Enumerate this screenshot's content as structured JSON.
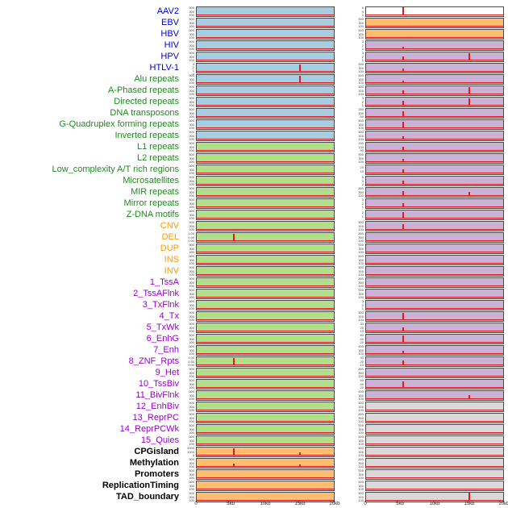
{
  "colors": {
    "blue": "#a6cee3",
    "green": "#b2df8a",
    "orange": "#fdbf6f",
    "purple": "#cab2d6",
    "gray": "#d9d9d9",
    "white": "#ffffff",
    "signal": "#e31a1c",
    "label_blue": "#0000cc",
    "label_green": "#1f8a1f",
    "label_orange": "#ff9900",
    "label_purple": "#9900cc",
    "label_black": "#000000"
  },
  "chart_data": {
    "type": "line",
    "x_axis": {
      "labels": [
        "0",
        "5kb",
        "10kb",
        "15kb",
        "20kb"
      ],
      "range_kb": [
        0,
        20
      ]
    },
    "default_yticks": [
      "500",
      "300",
      "100"
    ],
    "rows": [
      {
        "label": "AAV2",
        "label_color": "blue",
        "left": {
          "bg": "blue"
        },
        "right": {
          "bg": "white",
          "yticks": [
            "6",
            "4",
            "2"
          ],
          "spikes": [
            [
              0.27,
              0.95
            ]
          ]
        }
      },
      {
        "label": "EBV",
        "label_color": "blue",
        "left": {
          "bg": "blue"
        },
        "right": {
          "bg": "orange"
        }
      },
      {
        "label": "HBV",
        "label_color": "blue",
        "left": {
          "bg": "blue"
        },
        "right": {
          "bg": "orange"
        }
      },
      {
        "label": "HIV",
        "label_color": "blue",
        "left": {
          "bg": "blue"
        },
        "right": {
          "bg": "purple",
          "yticks": [
            "3",
            "2",
            "1"
          ],
          "spikes": [
            [
              0.27,
              0.3
            ]
          ]
        }
      },
      {
        "label": "HPV",
        "label_color": "blue",
        "left": {
          "bg": "blue"
        },
        "right": {
          "bg": "purple",
          "yticks": [
            "3",
            "2",
            "1"
          ],
          "spikes": [
            [
              0.27,
              0.45
            ],
            [
              0.75,
              0.85
            ]
          ]
        }
      },
      {
        "label": "HTLV-1",
        "label_color": "blue",
        "left": {
          "bg": "blue",
          "yticks": [
            "3",
            "2",
            "1",
            "0"
          ],
          "spikes": [
            [
              0.755,
              0.9
            ]
          ]
        },
        "right": {
          "bg": "purple",
          "spikes": [
            [
              0.27,
              0.35
            ]
          ]
        }
      },
      {
        "label": "Alu repeats",
        "label_color": "green",
        "left": {
          "bg": "blue",
          "spikes": [
            [
              0.755,
              0.85
            ]
          ]
        },
        "right": {
          "bg": "purple",
          "spikes": [
            [
              0.27,
              0.3
            ]
          ]
        }
      },
      {
        "label": "A-Phased repeats",
        "label_color": "green",
        "left": {
          "bg": "blue"
        },
        "right": {
          "bg": "purple",
          "spikes": [
            [
              0.27,
              0.5
            ],
            [
              0.75,
              0.85
            ]
          ]
        }
      },
      {
        "label": "Directed repeats",
        "label_color": "green",
        "left": {
          "bg": "blue"
        },
        "right": {
          "bg": "purple",
          "yticks": [
            "3",
            "2",
            "1"
          ],
          "spikes": [
            [
              0.27,
              0.55
            ],
            [
              0.75,
              0.9
            ]
          ]
        }
      },
      {
        "label": "DNA transposons",
        "label_color": "green",
        "left": {
          "bg": "blue"
        },
        "right": {
          "bg": "purple",
          "yticks": [
            "250",
            "150",
            "50"
          ],
          "spikes": [
            [
              0.27,
              0.65
            ]
          ]
        }
      },
      {
        "label": "G-Quadruplex forming repeats",
        "label_color": "green",
        "left": {
          "bg": "blue"
        },
        "right": {
          "bg": "purple",
          "spikes": [
            [
              0.27,
              0.75
            ]
          ]
        }
      },
      {
        "label": "Inverted repeats",
        "label_color": "green",
        "left": {
          "bg": "blue"
        },
        "right": {
          "bg": "purple",
          "spikes": [
            [
              0.27,
              0.4
            ]
          ]
        }
      },
      {
        "label": "L1 repeats",
        "label_color": "green",
        "left": {
          "bg": "green"
        },
        "right": {
          "bg": "purple",
          "yticks": [
            "150",
            "100",
            "50"
          ],
          "spikes": [
            [
              0.27,
              0.45
            ]
          ]
        }
      },
      {
        "label": "L2 repeats",
        "label_color": "green",
        "left": {
          "bg": "green"
        },
        "right": {
          "bg": "purple",
          "spikes": [
            [
              0.27,
              0.35
            ]
          ]
        }
      },
      {
        "label": "Low_complexity A/T rich regions",
        "label_color": "green",
        "left": {
          "bg": "green"
        },
        "right": {
          "bg": "purple",
          "yticks": [
            "20",
            "10"
          ],
          "spikes": [
            [
              0.27,
              0.5
            ]
          ]
        }
      },
      {
        "label": "Microsatellites",
        "label_color": "green",
        "left": {
          "bg": "green"
        },
        "right": {
          "bg": "purple",
          "yticks": [
            "6",
            "4",
            "2"
          ],
          "spikes": [
            [
              0.27,
              0.45
            ]
          ]
        }
      },
      {
        "label": "MIR repeats",
        "label_color": "green",
        "left": {
          "bg": "green"
        },
        "right": {
          "bg": "purple",
          "spikes": [
            [
              0.27,
              0.55
            ],
            [
              0.75,
              0.45
            ]
          ]
        }
      },
      {
        "label": "Mirror repeats",
        "label_color": "green",
        "left": {
          "bg": "green"
        },
        "right": {
          "bg": "purple",
          "yticks": [
            "3",
            "2",
            "1"
          ],
          "spikes": [
            [
              0.27,
              0.5
            ]
          ]
        }
      },
      {
        "label": "Z-DNA motifs",
        "label_color": "green",
        "left": {
          "bg": "green"
        },
        "right": {
          "bg": "purple",
          "yticks": [
            "2",
            "1"
          ],
          "spikes": [
            [
              0.27,
              0.75
            ]
          ]
        }
      },
      {
        "label": "CNV",
        "label_color": "orange",
        "left": {
          "bg": "green"
        },
        "right": {
          "bg": "purple",
          "spikes": [
            [
              0.27,
              0.65
            ]
          ]
        }
      },
      {
        "label": "DEL",
        "label_color": "orange",
        "left": {
          "bg": "green",
          "yticks": [
            "1.00",
            "0.50",
            "0.00"
          ],
          "spikes": [
            [
              0.27,
              0.9
            ]
          ]
        },
        "right": {
          "bg": "purple"
        }
      },
      {
        "label": "DUP",
        "label_color": "orange",
        "left": {
          "bg": "green"
        },
        "right": {
          "bg": "purple"
        }
      },
      {
        "label": "INS",
        "label_color": "orange",
        "left": {
          "bg": "green"
        },
        "right": {
          "bg": "purple"
        }
      },
      {
        "label": "INV",
        "label_color": "orange",
        "left": {
          "bg": "green"
        },
        "right": {
          "bg": "purple"
        }
      },
      {
        "label": "1_TssA",
        "label_color": "purple",
        "left": {
          "bg": "green"
        },
        "right": {
          "bg": "purple"
        }
      },
      {
        "label": "2_TssAFlnk",
        "label_color": "purple",
        "left": {
          "bg": "green"
        },
        "right": {
          "bg": "purple"
        }
      },
      {
        "label": "3_TxFlnk",
        "label_color": "purple",
        "left": {
          "bg": "green"
        },
        "right": {
          "bg": "purple",
          "yticks": [
            "3",
            "2",
            "1"
          ]
        }
      },
      {
        "label": "4_Tx",
        "label_color": "purple",
        "left": {
          "bg": "green"
        },
        "right": {
          "bg": "purple",
          "spikes": [
            [
              0.27,
              0.85
            ]
          ]
        }
      },
      {
        "label": "5_TxWk",
        "label_color": "purple",
        "left": {
          "bg": "green"
        },
        "right": {
          "bg": "purple",
          "yticks": [
            "30",
            "20",
            "10"
          ],
          "spikes": [
            [
              0.27,
              0.5
            ]
          ]
        }
      },
      {
        "label": "6_EnhG",
        "label_color": "purple",
        "left": {
          "bg": "green"
        },
        "right": {
          "bg": "purple",
          "yticks": [
            "60",
            "40",
            "20"
          ],
          "spikes": [
            [
              0.27,
              0.85
            ]
          ]
        }
      },
      {
        "label": "7_Enh",
        "label_color": "purple",
        "left": {
          "bg": "green"
        },
        "right": {
          "bg": "purple",
          "spikes": [
            [
              0.27,
              0.35
            ]
          ]
        }
      },
      {
        "label": "8_ZNF_Rpts",
        "label_color": "purple",
        "left": {
          "bg": "green",
          "yticks": [
            "1.00",
            "0.50",
            "0.00"
          ],
          "spikes": [
            [
              0.27,
              0.9
            ]
          ]
        },
        "right": {
          "bg": "purple",
          "yticks": [
            "30",
            "20",
            "10"
          ],
          "spikes": [
            [
              0.27,
              0.6
            ]
          ]
        }
      },
      {
        "label": "9_Het",
        "label_color": "purple",
        "left": {
          "bg": "green"
        },
        "right": {
          "bg": "purple"
        }
      },
      {
        "label": "10_TssBiv",
        "label_color": "purple",
        "left": {
          "bg": "green"
        },
        "right": {
          "bg": "purple",
          "yticks": [
            "60",
            "40",
            "20"
          ],
          "spikes": [
            [
              0.27,
              0.75
            ]
          ]
        }
      },
      {
        "label": "11_BivFlnk",
        "label_color": "purple",
        "left": {
          "bg": "green"
        },
        "right": {
          "bg": "purple",
          "spikes": [
            [
              0.75,
              0.5
            ]
          ]
        }
      },
      {
        "label": "12_EnhBiv",
        "label_color": "purple",
        "left": {
          "bg": "green"
        },
        "right": {
          "bg": "gray"
        }
      },
      {
        "label": "13_ReprPC",
        "label_color": "purple",
        "left": {
          "bg": "green"
        },
        "right": {
          "bg": "gray"
        }
      },
      {
        "label": "14_ReprPCWk",
        "label_color": "purple",
        "left": {
          "bg": "green"
        },
        "right": {
          "bg": "gray"
        }
      },
      {
        "label": "15_Quies",
        "label_color": "purple",
        "left": {
          "bg": "green"
        },
        "right": {
          "bg": "gray"
        }
      },
      {
        "label": "CPGisland",
        "label_color": "black",
        "left": {
          "bg": "orange",
          "yticks": [
            "2000",
            "1000",
            "0"
          ],
          "spikes": [
            [
              0.27,
              0.9
            ],
            [
              0.75,
              0.35
            ]
          ]
        },
        "right": {
          "bg": "gray"
        }
      },
      {
        "label": "Methylation",
        "label_color": "black",
        "left": {
          "bg": "orange",
          "spikes": [
            [
              0.27,
              0.35
            ],
            [
              0.75,
              0.3
            ]
          ]
        },
        "right": {
          "bg": "gray"
        }
      },
      {
        "label": "Promoters",
        "label_color": "black",
        "left": {
          "bg": "orange"
        },
        "right": {
          "bg": "gray"
        }
      },
      {
        "label": "ReplicationTiming",
        "label_color": "black",
        "left": {
          "bg": "orange"
        },
        "right": {
          "bg": "gray"
        }
      },
      {
        "label": "TAD_boundary",
        "label_color": "black",
        "left": {
          "bg": "orange"
        },
        "right": {
          "bg": "gray",
          "spikes": [
            [
              0.75,
              0.95
            ]
          ]
        }
      }
    ]
  }
}
